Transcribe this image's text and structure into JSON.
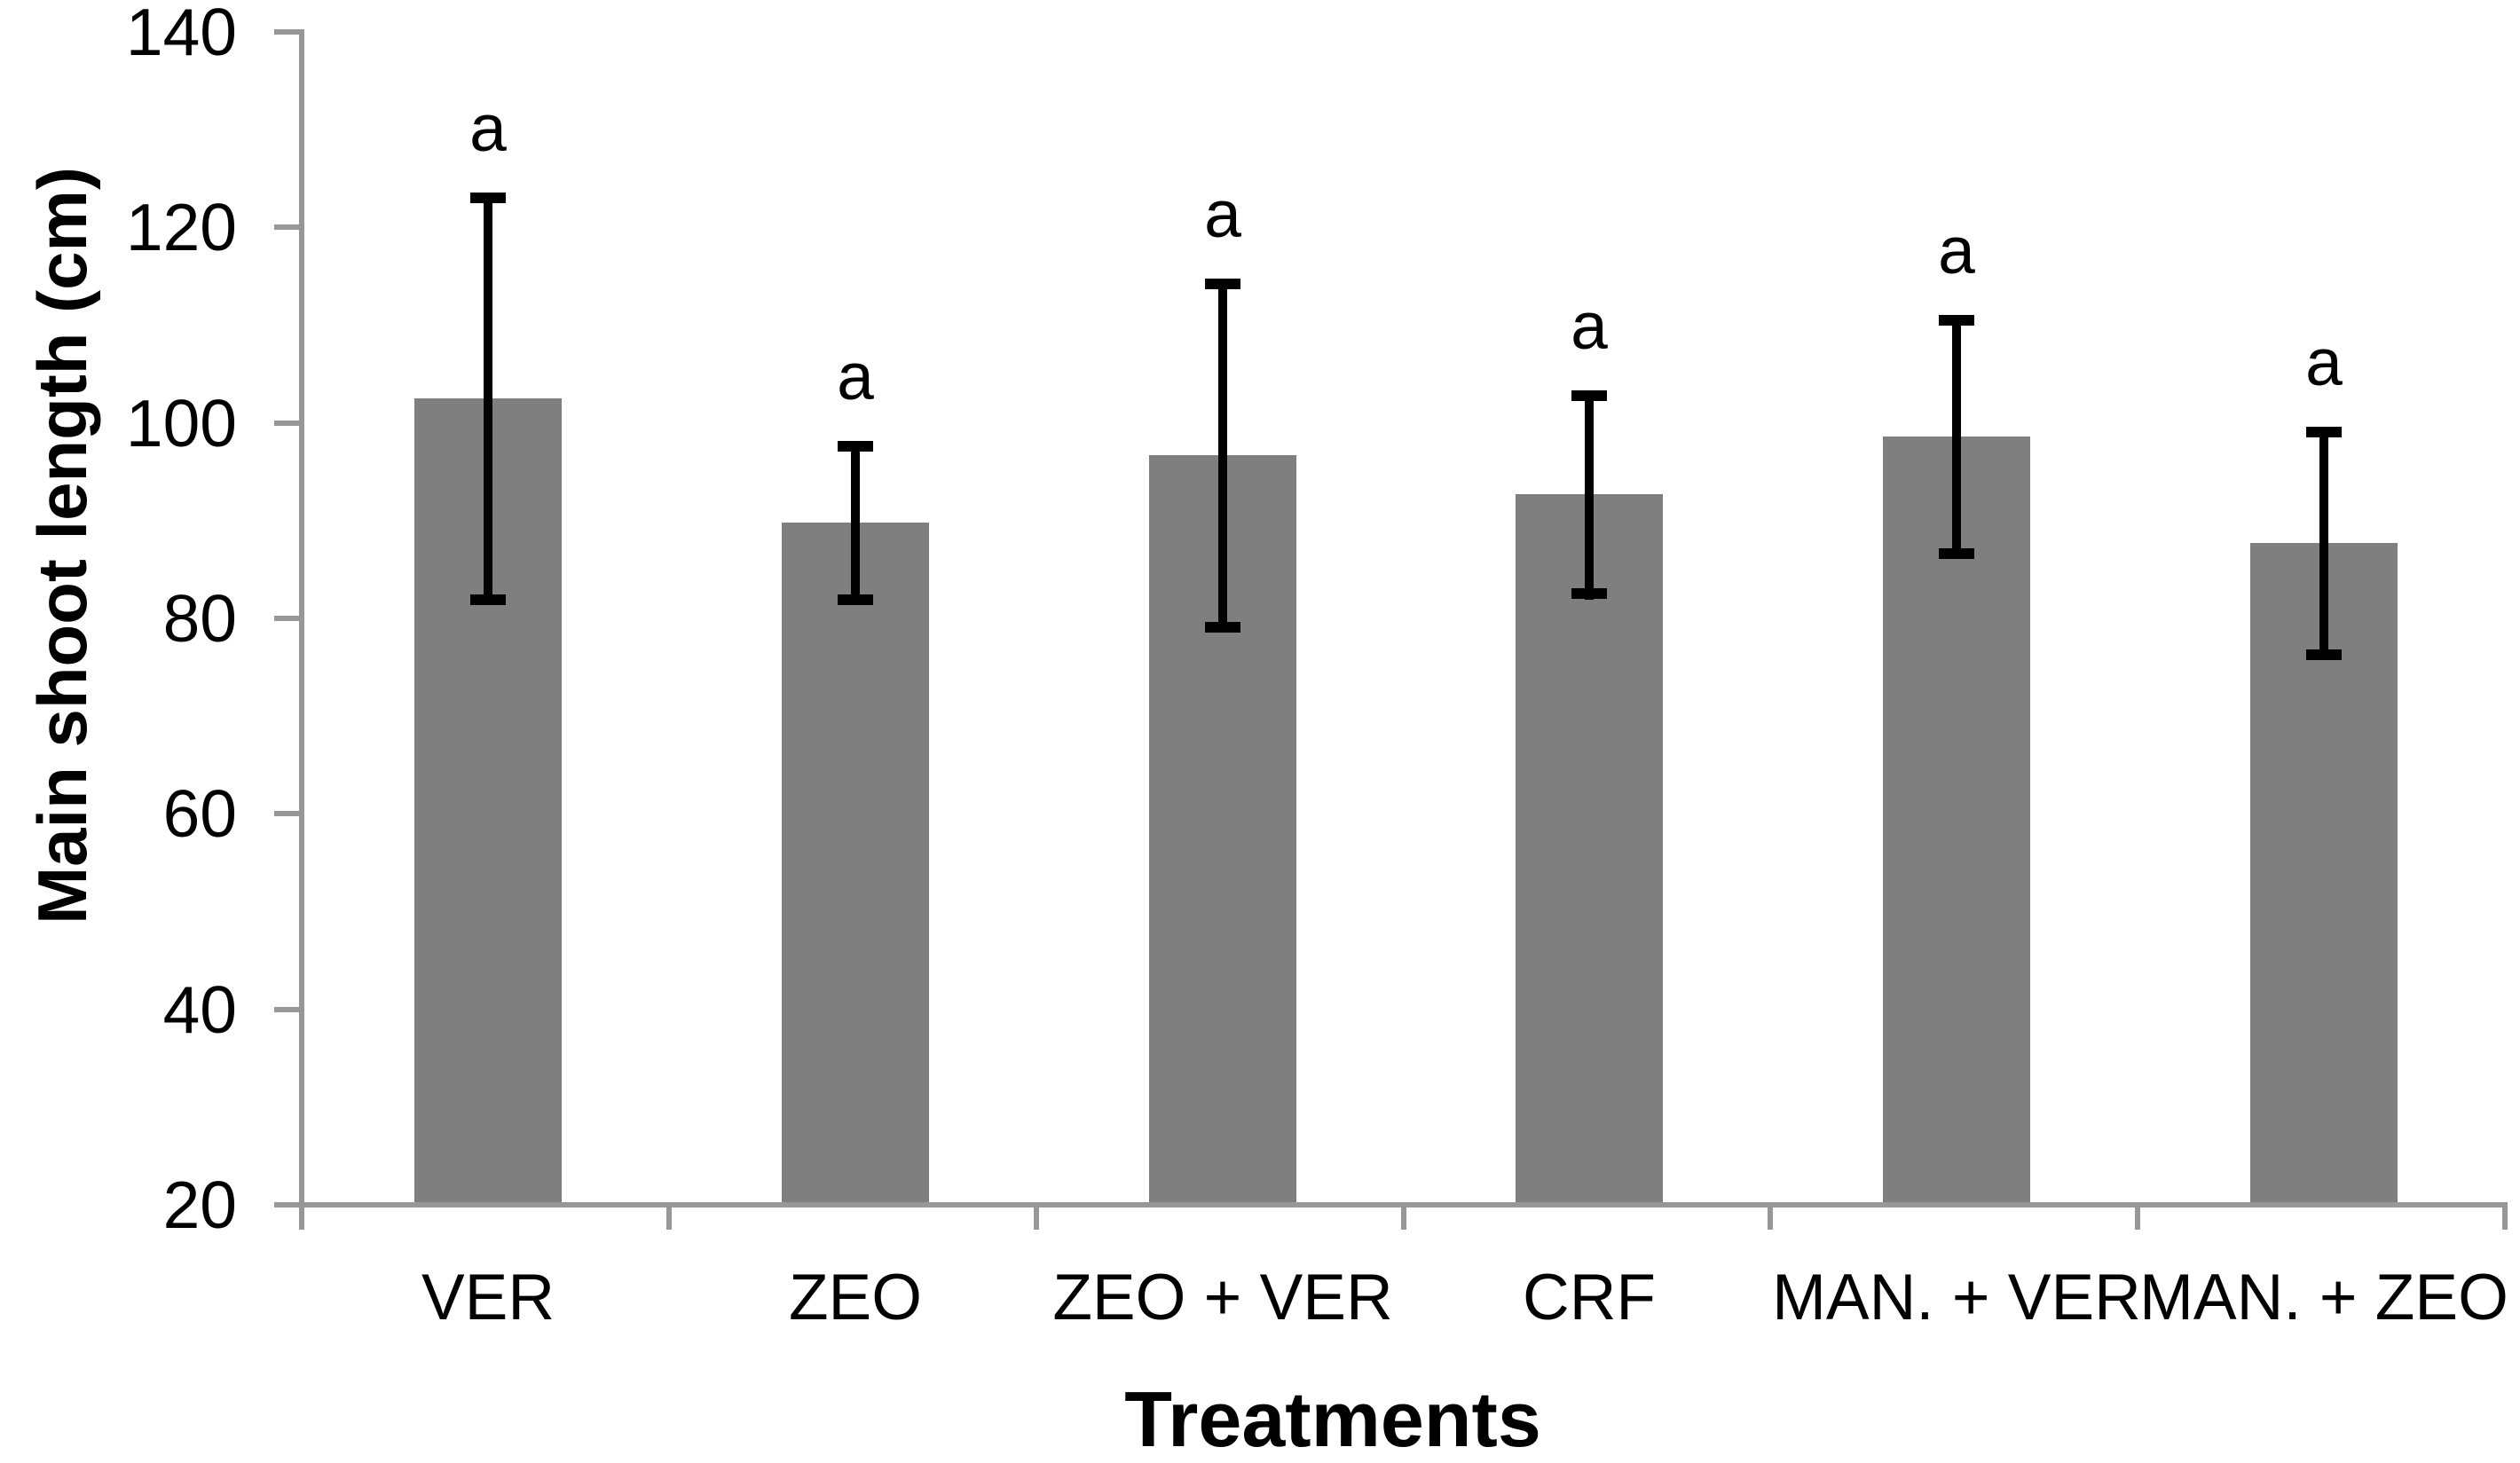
{
  "chart_data": {
    "type": "bar",
    "title": "",
    "xlabel": "Treatments",
    "ylabel": "Main shoot length (cm)",
    "categories": [
      "VER",
      "ZEO",
      "ZEO + VER",
      "CRF",
      "MAN. + VER",
      "MAN. + ZEO"
    ],
    "values": [
      102.2,
      89.5,
      96.4,
      92.4,
      98.3,
      87.4
    ],
    "error_bars": [
      21.1,
      8.4,
      18.1,
      10.7,
      12.5,
      11.9
    ],
    "significance_labels": [
      "a",
      "a",
      "a",
      "a",
      "a",
      "a"
    ],
    "yticks": [
      20,
      40,
      60,
      80,
      100,
      120,
      140
    ],
    "ylim": [
      20,
      140
    ],
    "grid": false,
    "legend": false,
    "bar_color": "#7f7f7f",
    "axis_color": "#979797",
    "error_color": "#000000",
    "text_color": "#000000"
  }
}
